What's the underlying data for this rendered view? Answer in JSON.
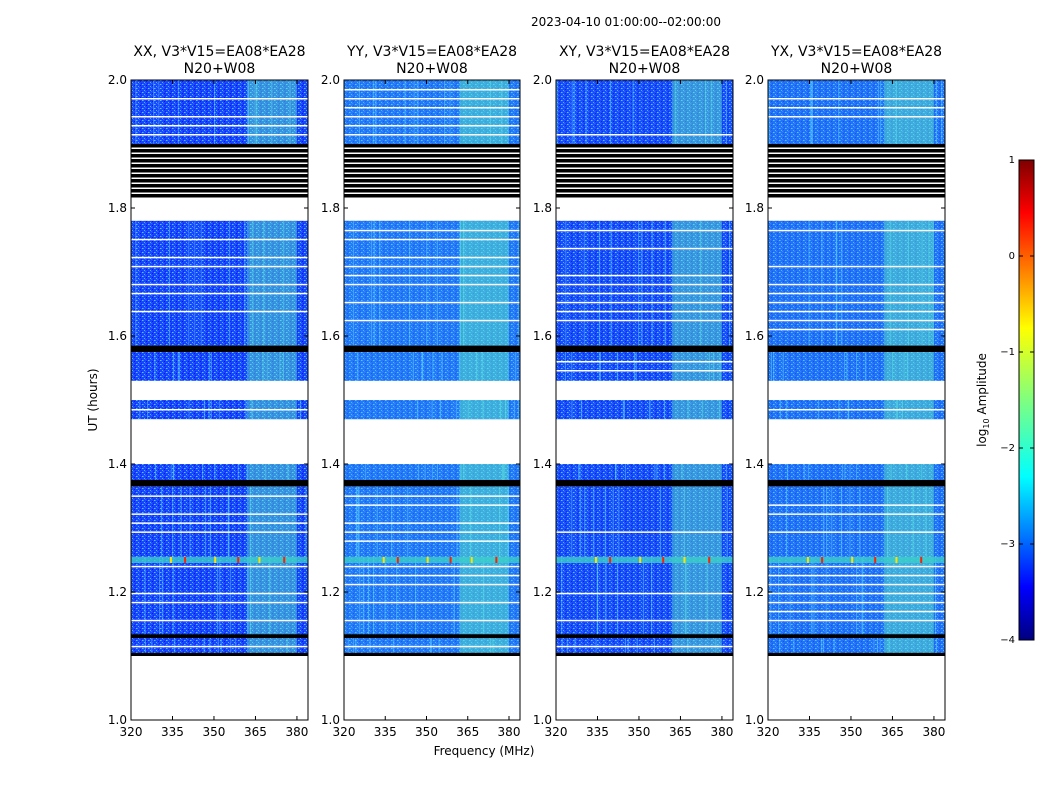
{
  "chart_data": {
    "type": "heatmap",
    "suptitle": "2023-04-10  01:00:00--02:00:00",
    "xlabel": "Frequency (MHz)",
    "ylabel": "UT (hours)",
    "xlim": [
      320,
      384
    ],
    "ylim": [
      1.0,
      2.0
    ],
    "xticks": [
      320,
      335,
      350,
      365,
      380
    ],
    "yticks": [
      1.0,
      1.2,
      1.4,
      1.6,
      1.8,
      2.0
    ],
    "panels": [
      {
        "title": "XX, V3*V15=EA08*EA28",
        "subtitle": "N20+W08",
        "tint": 0.0
      },
      {
        "title": "YY, V3*V15=EA08*EA28",
        "subtitle": "N20+W08",
        "tint": 0.35
      },
      {
        "title": "XY, V3*V15=EA08*EA28",
        "subtitle": "N20+W08",
        "tint": 0.05
      },
      {
        "title": "YX, V3*V15=EA08*EA28",
        "subtitle": "N20+W08",
        "tint": 0.3
      }
    ],
    "data_segments_ut": [
      [
        1.1,
        1.13
      ],
      [
        1.13,
        1.255
      ],
      [
        1.255,
        1.365
      ],
      [
        1.375,
        1.4
      ],
      [
        1.47,
        1.5
      ],
      [
        1.53,
        1.575
      ],
      [
        1.585,
        1.78
      ],
      [
        1.9,
        2.0
      ]
    ],
    "blank_segments_ut": [
      [
        1.0,
        1.1
      ],
      [
        1.4,
        1.47
      ],
      [
        1.5,
        1.53
      ],
      [
        1.78,
        1.82
      ]
    ],
    "flagged_segments_ut": [
      [
        1.1,
        1.105
      ],
      [
        1.128,
        1.134
      ],
      [
        1.365,
        1.375
      ],
      [
        1.575,
        1.585
      ],
      [
        1.82,
        1.9
      ]
    ],
    "rfi_row_ut": 1.25,
    "bright_band_mhz": [
      362,
      380
    ],
    "colorbar": {
      "label": "log10 Amplitude",
      "label_base": "log",
      "label_sub": "10",
      "label_rest": " Amplitude",
      "range": [
        -4,
        1
      ],
      "ticks": [
        "1",
        "0",
        "−1",
        "−2",
        "−3",
        "−4"
      ],
      "colormap": "jet"
    }
  }
}
